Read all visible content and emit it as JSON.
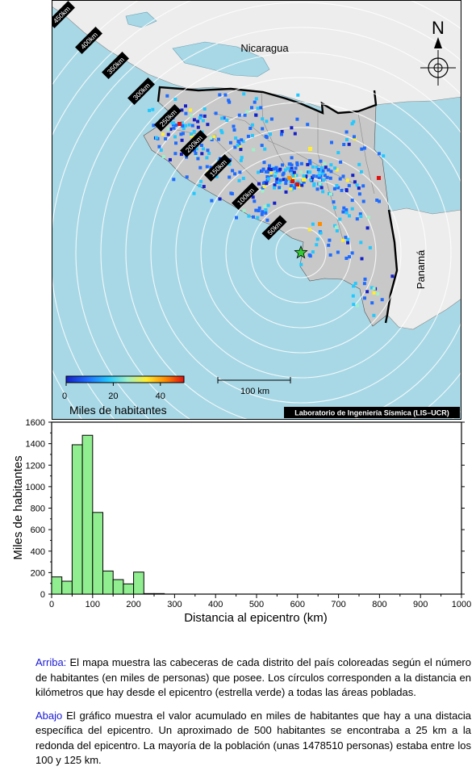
{
  "map": {
    "countries": [
      "Nicaragua",
      "Panamá"
    ],
    "north_label": "N",
    "ring_labels": [
      "50km",
      "100km",
      "150km",
      "200km",
      "250km",
      "300km",
      "350km",
      "400km",
      "450km"
    ],
    "scale_label": "100 km",
    "colorbar": {
      "title": "Miles de habitantes",
      "ticks": [
        "0",
        "20",
        "40"
      ],
      "range": [
        0,
        50
      ],
      "colors": [
        "#1420c8",
        "#1e6cff",
        "#22c8ff",
        "#9ef0c8",
        "#ffee30",
        "#ff8c00",
        "#e01010"
      ]
    },
    "credit": "Laboratorio de Ingeniería Sísmica (LIS–UCR)",
    "colors": {
      "sea": "#a8d8e6",
      "costa_rica": "#c8c8c8",
      "neighbors": "#ededed",
      "epicenter": "#33cc33"
    }
  },
  "chart_data": {
    "type": "bar",
    "xlabel": "Distancia al epicentro (km)",
    "ylabel": "Miles de habitantes",
    "xlim": [
      0,
      1000
    ],
    "ylim": [
      0,
      1600
    ],
    "xticks": [
      0,
      100,
      200,
      300,
      400,
      500,
      600,
      700,
      800,
      900,
      1000
    ],
    "yticks": [
      0,
      200,
      400,
      600,
      800,
      1000,
      1200,
      1400,
      1600
    ],
    "bin_width": 25,
    "bins": [
      25,
      50,
      75,
      100,
      125,
      150,
      175,
      200,
      225,
      250,
      275
    ],
    "values": [
      160,
      120,
      1390,
      1478,
      760,
      215,
      135,
      95,
      205,
      5,
      5
    ],
    "bar_color": "#90ee90"
  },
  "caption": {
    "p1_tag": "Arriba:",
    "p1_text": " El mapa muestra las cabeceras de cada distrito del país coloreadas según el número de habitantes (en miles de personas) que posee. Los círculos corresponden a la distancia en kilómetros que hay desde el epicentro (estrella verde) a todas las áreas pobladas.",
    "p2_tag": "Abajo",
    "p2_text": " El gráfico muestra el valor acumulado en miles de habitantes que hay a una distacia específica del epicentro. Un aproximado de 500 habitantes se encontraba a 25 km a la redonda del epicentro. La mayoría de la población (unas 1478510 personas) estaba entre los 100 y 125 km."
  }
}
